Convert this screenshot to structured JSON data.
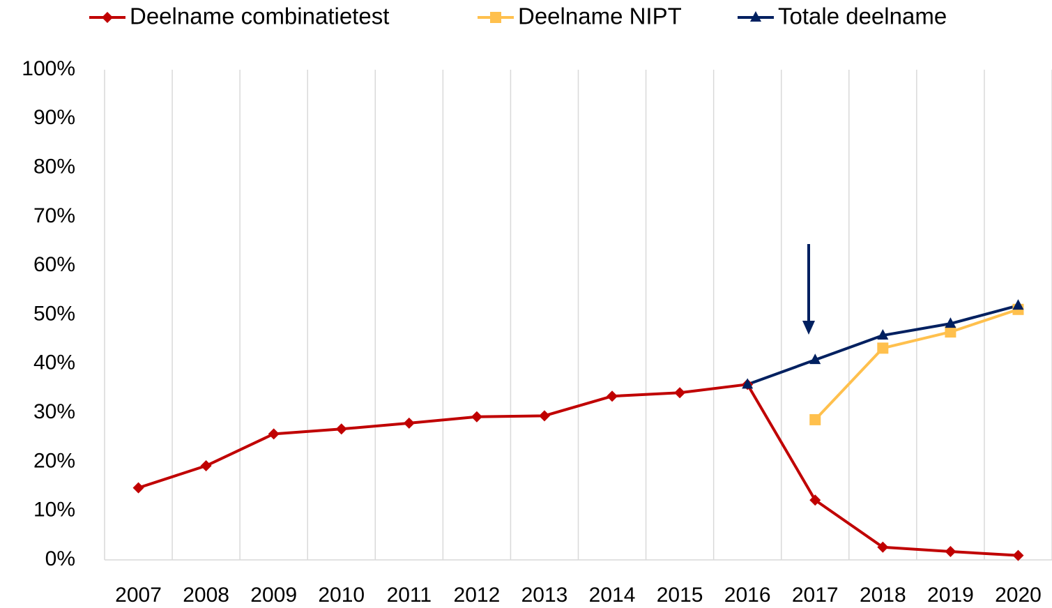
{
  "chart_data": {
    "type": "line",
    "categories": [
      "2007",
      "2008",
      "2009",
      "2010",
      "2011",
      "2012",
      "2013",
      "2014",
      "2015",
      "2016",
      "2017",
      "2018",
      "2019",
      "2020"
    ],
    "series": [
      {
        "name": "Deelname combinatietest",
        "color": "#c00000",
        "marker": "diamond",
        "values": [
          14.7,
          19.2,
          25.7,
          26.7,
          27.9,
          29.2,
          29.4,
          33.4,
          34.1,
          35.8,
          12.2,
          2.6,
          1.7,
          0.9
        ]
      },
      {
        "name": "Deelname NIPT",
        "color": "#ffc04d",
        "marker": "square",
        "values": [
          null,
          null,
          null,
          null,
          null,
          null,
          null,
          null,
          null,
          null,
          28.6,
          43.2,
          46.5,
          51.1
        ]
      },
      {
        "name": "Totale deelname",
        "color": "#002060",
        "marker": "triangle",
        "values": [
          null,
          null,
          null,
          null,
          null,
          null,
          null,
          null,
          null,
          35.8,
          40.8,
          45.8,
          48.2,
          51.9
        ]
      }
    ],
    "ylim": [
      0,
      100
    ],
    "yticks": [
      {
        "value": 0,
        "label": "0%"
      },
      {
        "value": 10,
        "label": "10%"
      },
      {
        "value": 20,
        "label": "20%"
      },
      {
        "value": 30,
        "label": "30%"
      },
      {
        "value": 40,
        "label": "40%"
      },
      {
        "value": 50,
        "label": "50%"
      },
      {
        "value": 60,
        "label": "60%"
      },
      {
        "value": 70,
        "label": "70%"
      },
      {
        "value": 80,
        "label": "80%"
      },
      {
        "value": 90,
        "label": "90%"
      },
      {
        "value": 100,
        "label": "100%"
      }
    ],
    "grid": "vertical",
    "legend": "top"
  }
}
